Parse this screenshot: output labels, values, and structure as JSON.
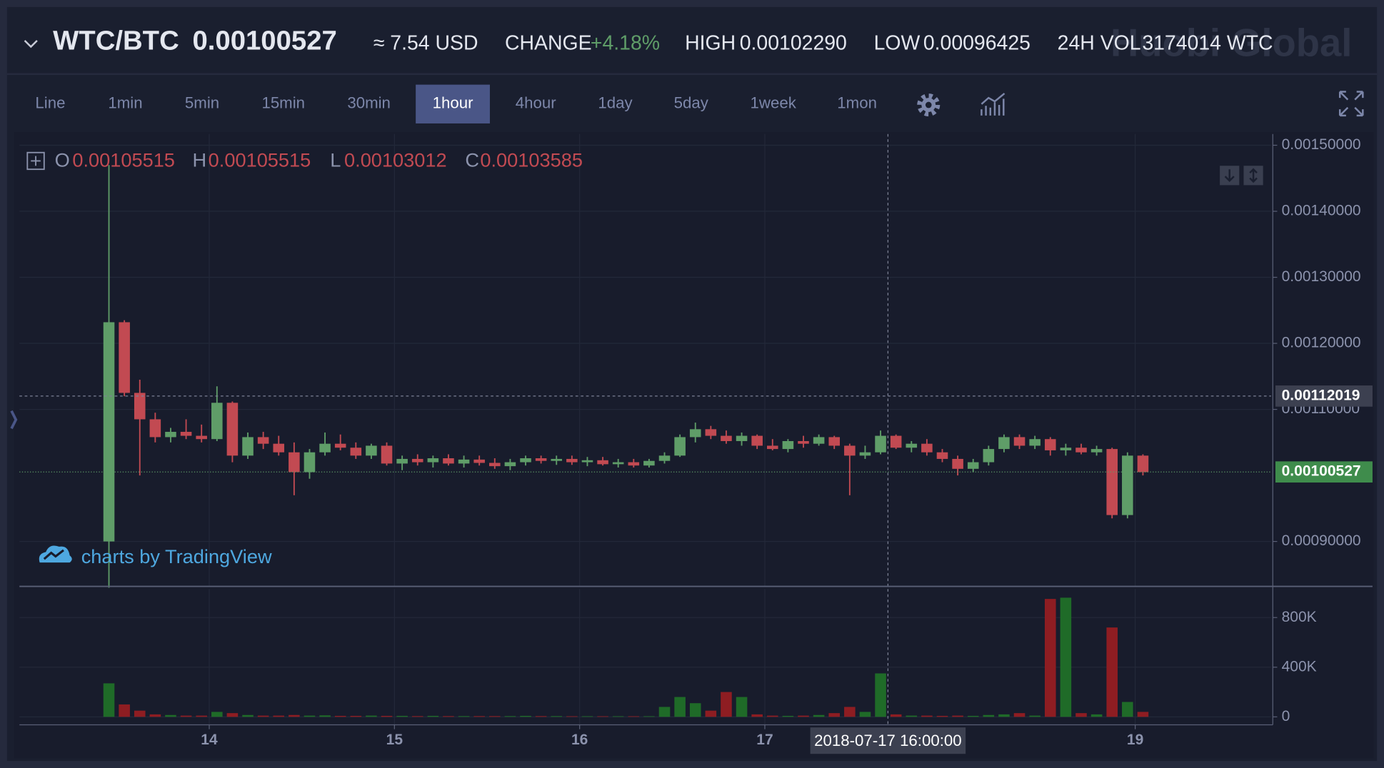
{
  "header": {
    "pair": "WTC/BTC",
    "price": "0.00100527",
    "usd": "≈ 7.54 USD",
    "change_label": "CHANGE",
    "change": "+4.18%",
    "high_label": "HIGH",
    "high": "0.00102290",
    "low_label": "LOW",
    "low": "0.00096425",
    "vol_label": "24H VOL",
    "vol": "3174014 WTC",
    "brand": "Huobi Global"
  },
  "toolbar": {
    "intervals": [
      "Line",
      "1min",
      "5min",
      "15min",
      "30min",
      "1hour",
      "4hour",
      "1day",
      "5day",
      "1week",
      "1mon"
    ],
    "active": "1hour"
  },
  "legend": {
    "o_label": "O",
    "o": "0.00105515",
    "h_label": "H",
    "h": "0.00105515",
    "l_label": "L",
    "l": "0.00103012",
    "c_label": "C",
    "c": "0.00103585"
  },
  "watermark": "charts by TradingView",
  "chart_data": {
    "type": "candlestick",
    "x": [
      11,
      13,
      15,
      17,
      19,
      21,
      23,
      25,
      27,
      29,
      31,
      33,
      35,
      37,
      39,
      41,
      43,
      45,
      47,
      49,
      51,
      53,
      55,
      57,
      59,
      61,
      63,
      65,
      67,
      69,
      71,
      73,
      75,
      77,
      79,
      81,
      83,
      85,
      87,
      89,
      91,
      93,
      95,
      97,
      99,
      101,
      103,
      105,
      107,
      109,
      111,
      113,
      115,
      117,
      119,
      121,
      123,
      125,
      127,
      129,
      131,
      133,
      135,
      137,
      139,
      141,
      143,
      145
    ],
    "open": [
      0.0009,
      0.001232,
      0.001125,
      0.001085,
      0.001058,
      0.001066,
      0.00106,
      0.001055,
      0.00111,
      0.00103,
      0.001058,
      0.001048,
      0.001035,
      0.001005,
      0.001035,
      0.001048,
      0.001042,
      0.00103,
      0.001045,
      0.001018,
      0.001025,
      0.00102,
      0.001026,
      0.001018,
      0.001024,
      0.001019,
      0.001014,
      0.00102,
      0.001026,
      0.001022,
      0.001025,
      0.00102,
      0.001023,
      0.001017,
      0.00102,
      0.001015,
      0.001022,
      0.00103,
      0.001058,
      0.00107,
      0.00106,
      0.001052,
      0.00106,
      0.001045,
      0.00104,
      0.001052,
      0.001048,
      0.001058,
      0.001045,
      0.00103,
      0.001035,
      0.00106,
      0.001042,
      0.001048,
      0.001035,
      0.001025,
      0.00101,
      0.00102,
      0.00104,
      0.001058,
      0.001045,
      0.001055,
      0.001038,
      0.001042,
      0.001035,
      0.00104,
      0.00094,
      0.00103
    ],
    "high": [
      0.00147,
      0.001235,
      0.001145,
      0.001095,
      0.001072,
      0.001085,
      0.001077,
      0.001135,
      0.001112,
      0.001065,
      0.001066,
      0.00106,
      0.00105,
      0.00104,
      0.001065,
      0.001062,
      0.00105,
      0.001048,
      0.00105,
      0.00103,
      0.001032,
      0.00103,
      0.001032,
      0.00103,
      0.00103,
      0.001026,
      0.001025,
      0.00103,
      0.00103,
      0.00103,
      0.00103,
      0.001028,
      0.001028,
      0.001025,
      0.001025,
      0.001025,
      0.001035,
      0.001062,
      0.00108,
      0.001075,
      0.001068,
      0.001065,
      0.001062,
      0.001055,
      0.001055,
      0.00106,
      0.001062,
      0.00106,
      0.001048,
      0.001045,
      0.001068,
      0.001062,
      0.001052,
      0.001055,
      0.00104,
      0.00103,
      0.001025,
      0.001045,
      0.001062,
      0.001062,
      0.00106,
      0.001058,
      0.001048,
      0.001048,
      0.001045,
      0.001042,
      0.001035,
      0.001032
    ],
    "low": [
      0.00083,
      0.00112,
      0.001,
      0.00105,
      0.00105,
      0.001055,
      0.00105,
      0.001052,
      0.00102,
      0.001025,
      0.00104,
      0.00103,
      0.00097,
      0.000995,
      0.00103,
      0.001038,
      0.001025,
      0.001025,
      0.001015,
      0.001008,
      0.001015,
      0.001012,
      0.001015,
      0.001012,
      0.001015,
      0.00101,
      0.001008,
      0.001015,
      0.001018,
      0.001016,
      0.001016,
      0.001014,
      0.001015,
      0.001012,
      0.001012,
      0.001012,
      0.001018,
      0.001028,
      0.00105,
      0.001055,
      0.001048,
      0.001045,
      0.00104,
      0.001038,
      0.001035,
      0.001042,
      0.001045,
      0.00104,
      0.00097,
      0.001025,
      0.001032,
      0.00104,
      0.001035,
      0.00103,
      0.00102,
      0.001,
      0.001005,
      0.001015,
      0.001035,
      0.00104,
      0.00104,
      0.00103,
      0.00103,
      0.001032,
      0.00103,
      0.000935,
      0.000935,
      0.001
    ],
    "close": [
      0.001232,
      0.001125,
      0.001085,
      0.001058,
      0.001066,
      0.00106,
      0.001055,
      0.00111,
      0.00103,
      0.001058,
      0.001048,
      0.001035,
      0.001005,
      0.001035,
      0.001048,
      0.001042,
      0.00103,
      0.001045,
      0.001018,
      0.001025,
      0.00102,
      0.001026,
      0.001018,
      0.001024,
      0.001019,
      0.001014,
      0.00102,
      0.001026,
      0.001022,
      0.001025,
      0.00102,
      0.001023,
      0.001017,
      0.00102,
      0.001015,
      0.001022,
      0.00103,
      0.001058,
      0.00107,
      0.00106,
      0.001052,
      0.00106,
      0.001045,
      0.00104,
      0.001052,
      0.001048,
      0.001058,
      0.001045,
      0.00103,
      0.001035,
      0.00106,
      0.001042,
      0.001048,
      0.001035,
      0.001025,
      0.00101,
      0.00102,
      0.00104,
      0.001058,
      0.001045,
      0.001055,
      0.001038,
      0.001042,
      0.001035,
      0.00104,
      0.00094,
      0.00103,
      0.001005
    ],
    "volume": [
      270000,
      100000,
      50000,
      20000,
      15000,
      10000,
      10000,
      40000,
      30000,
      15000,
      10000,
      10000,
      15000,
      10000,
      12000,
      8000,
      8000,
      10000,
      8000,
      8000,
      6000,
      8000,
      6000,
      6000,
      6000,
      6000,
      6000,
      8000,
      6000,
      6000,
      5000,
      5000,
      5000,
      5000,
      5000,
      5000,
      80000,
      160000,
      110000,
      50000,
      200000,
      160000,
      20000,
      10000,
      8000,
      10000,
      15000,
      30000,
      80000,
      40000,
      350000,
      20000,
      10000,
      10000,
      8000,
      10000,
      8000,
      15000,
      20000,
      30000,
      10000,
      950000,
      960000,
      30000,
      20000,
      720000,
      120000,
      40000
    ],
    "up_color": "#5f9d68",
    "down_color": "#c24a52",
    "volume_up_color": "#1f6b28",
    "volume_down_color": "#8e1d22",
    "xlim": [
      -0.6,
      161.6
    ],
    "xticks": [
      {
        "value": 24,
        "label": "14"
      },
      {
        "value": 48,
        "label": "15"
      },
      {
        "value": 72,
        "label": "16"
      },
      {
        "value": 96,
        "label": "17"
      },
      {
        "value": 144,
        "label": "19"
      }
    ],
    "ylim": [
      0.000832,
      0.001517
    ],
    "yticks": [
      {
        "value": 0.0009,
        "label": "0.00090000"
      },
      {
        "value": 0.0011,
        "label": "0.00110000"
      },
      {
        "value": 0.0012,
        "label": "0.00120000"
      },
      {
        "value": 0.0013,
        "label": "0.00130000"
      },
      {
        "value": 0.0014,
        "label": "0.00140000"
      },
      {
        "value": 0.0015,
        "label": "0.00150000"
      }
    ],
    "volume_ylim": [
      -64000,
      1030000
    ],
    "volume_yticks": [
      0,
      {
        "value": 400000,
        "label": "400K"
      },
      {
        "value": 800000,
        "label": "800K"
      }
    ],
    "last_price": 0.00100527,
    "crosshair_price": 0.00112019,
    "crosshair_time": "2018-07-17 16:00:00",
    "grid": true
  }
}
